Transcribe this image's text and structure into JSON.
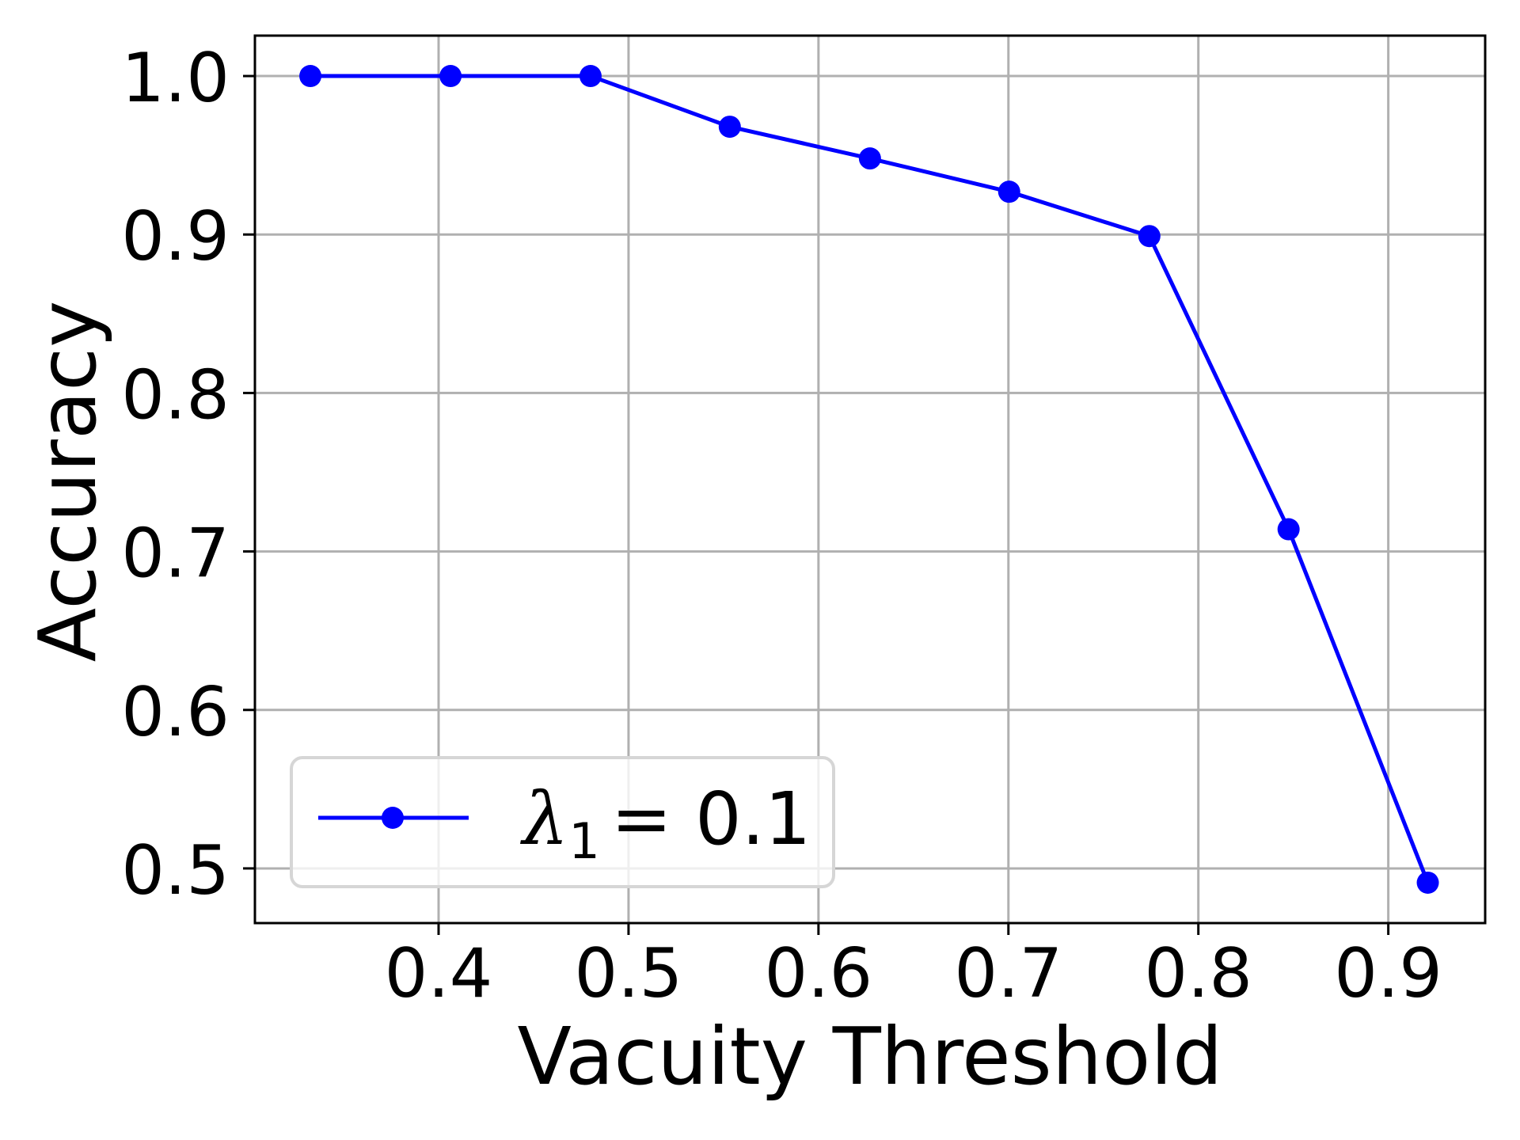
{
  "chart_data": {
    "type": "line",
    "title": "",
    "xlabel": "Vacuity Threshold",
    "ylabel": "Accuracy",
    "xlim": [
      0.3033,
      0.951
    ],
    "ylim": [
      0.4655,
      1.0255
    ],
    "grid": true,
    "legend_position": "lower left",
    "xticks": [
      0.4,
      0.5,
      0.6,
      0.7,
      0.8,
      0.9
    ],
    "xtick_labels": [
      "0.4",
      "0.5",
      "0.6",
      "0.7",
      "0.8",
      "0.9"
    ],
    "yticks": [
      0.5,
      0.6,
      0.7,
      0.8,
      0.9,
      1.0
    ],
    "ytick_labels": [
      "0.5",
      "0.6",
      "0.7",
      "0.8",
      "0.9",
      "1.0"
    ],
    "series": [
      {
        "name": "λ1 = 0.1",
        "legend_symbol": "λ",
        "legend_subscript": "1",
        "legend_rest": "= 0.1",
        "color": "#0000ff",
        "marker": "circle",
        "x": [
          0.3325,
          0.4063,
          0.48,
          0.5533,
          0.6271,
          0.7004,
          0.7742,
          0.8475,
          0.9208
        ],
        "y": [
          1.0,
          1.0,
          1.0,
          0.968,
          0.948,
          0.927,
          0.899,
          0.714,
          0.491
        ]
      }
    ]
  },
  "colors": {
    "grid": "#b0b0b0",
    "spine": "#000000",
    "legend_border": "#d6d6d6"
  }
}
